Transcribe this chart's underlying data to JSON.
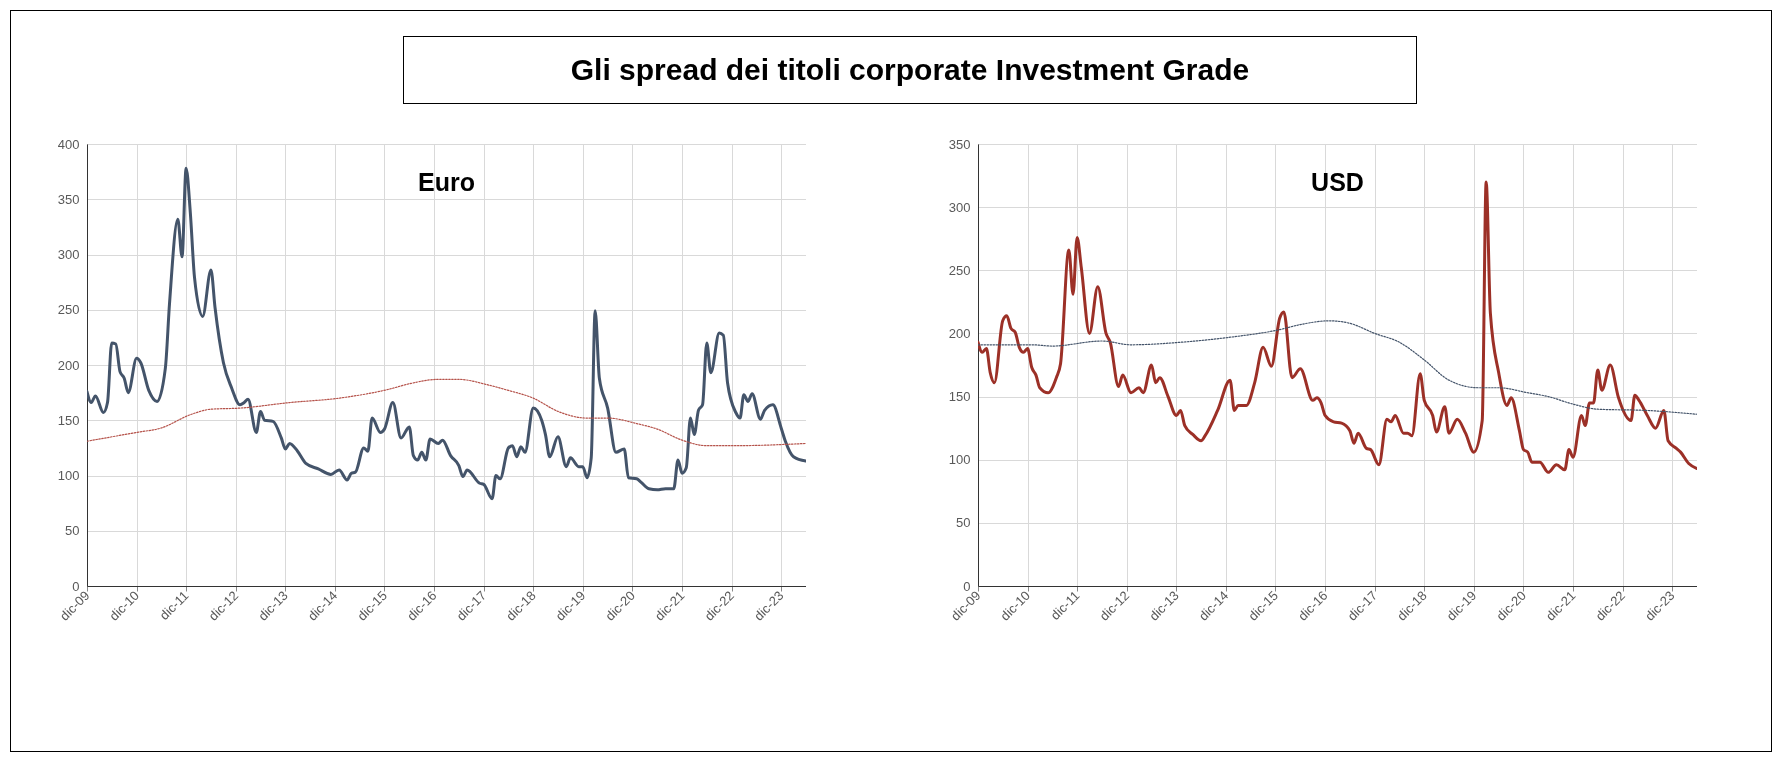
{
  "chart_data": [
    {
      "type": "line",
      "title": "Gli spread dei titoli corporate Investment Grade",
      "subtitle": "Euro",
      "grid": true,
      "xlim": [
        "2009-12",
        "2024-06"
      ],
      "xticks": [
        {
          "value": "2009-12",
          "label": "dic-09"
        },
        {
          "value": "2010-12",
          "label": "dic-10"
        },
        {
          "value": "2011-12",
          "label": "dic-11"
        },
        {
          "value": "2012-12",
          "label": "dic-12"
        },
        {
          "value": "2013-12",
          "label": "dic-13"
        },
        {
          "value": "2014-12",
          "label": "dic-14"
        },
        {
          "value": "2015-12",
          "label": "dic-15"
        },
        {
          "value": "2016-12",
          "label": "dic-16"
        },
        {
          "value": "2017-12",
          "label": "dic-17"
        },
        {
          "value": "2018-12",
          "label": "dic-18"
        },
        {
          "value": "2019-12",
          "label": "dic-19"
        },
        {
          "value": "2020-12",
          "label": "dic-20"
        },
        {
          "value": "2021-12",
          "label": "dic-21"
        },
        {
          "value": "2022-12",
          "label": "dic-22"
        },
        {
          "value": "2023-12",
          "label": "dic-23"
        }
      ],
      "ylim": [
        0,
        400
      ],
      "yticks": [
        0,
        50,
        100,
        150,
        200,
        250,
        300,
        350,
        400
      ],
      "series": [
        {
          "color": "#44546a",
          "line_style": "solid",
          "x": [
            "2009-12",
            "2010-01",
            "2010-02",
            "2010-04",
            "2010-05",
            "2010-06",
            "2010-07",
            "2010-08",
            "2010-09",
            "2010-10",
            "2010-12",
            "2011-01",
            "2011-03",
            "2011-05",
            "2011-07",
            "2011-08",
            "2011-10",
            "2011-11",
            "2011-12",
            "2012-01",
            "2012-02",
            "2012-04",
            "2012-06",
            "2012-07",
            "2012-09",
            "2012-11",
            "2013-01",
            "2013-02",
            "2013-03",
            "2013-05",
            "2013-06",
            "2013-07",
            "2013-09",
            "2013-11",
            "2013-12",
            "2014-01",
            "2014-03",
            "2014-05",
            "2014-08",
            "2014-11",
            "2015-01",
            "2015-03",
            "2015-04",
            "2015-05",
            "2015-07",
            "2015-08",
            "2015-09",
            "2015-11",
            "2015-12",
            "2016-02",
            "2016-04",
            "2016-06",
            "2016-07",
            "2016-08",
            "2016-09",
            "2016-10",
            "2016-11",
            "2017-01",
            "2017-02",
            "2017-04",
            "2017-06",
            "2017-07",
            "2017-08",
            "2017-11",
            "2017-12",
            "2018-02",
            "2018-03",
            "2018-04",
            "2018-06",
            "2018-07",
            "2018-08",
            "2018-09",
            "2018-10",
            "2018-12",
            "2019-02",
            "2019-03",
            "2019-04",
            "2019-06",
            "2019-08",
            "2019-09",
            "2019-11",
            "2019-12",
            "2020-01",
            "2020-02",
            "2020-03",
            "2020-04",
            "2020-06",
            "2020-08",
            "2020-10",
            "2020-11",
            "2021-01",
            "2021-02",
            "2021-04",
            "2021-06",
            "2021-08",
            "2021-10",
            "2021-11",
            "2021-12",
            "2022-01",
            "2022-02",
            "2022-03",
            "2022-04",
            "2022-05",
            "2022-06",
            "2022-07",
            "2022-09",
            "2022-10",
            "2022-11",
            "2023-01",
            "2023-02",
            "2023-03",
            "2023-04",
            "2023-05",
            "2023-07",
            "2023-08",
            "2023-10",
            "2023-12",
            "2024-01",
            "2024-03",
            "2024-06"
          ],
          "values": [
            176,
            166,
            172,
            157,
            166,
            220,
            219,
            194,
            188,
            175,
            206,
            202,
            177,
            167,
            197,
            256,
            332,
            298,
            378,
            338,
            279,
            244,
            286,
            252,
            202,
            179,
            164,
            166,
            169,
            139,
            158,
            150,
            149,
            134,
            124,
            129,
            122,
            111,
            106,
            101,
            105,
            96,
            102,
            103,
            125,
            122,
            152,
            139,
            142,
            166,
            134,
            144,
            118,
            114,
            121,
            114,
            133,
            129,
            132,
            118,
            109,
            99,
            105,
            93,
            92,
            79,
            100,
            97,
            125,
            127,
            117,
            126,
            121,
            161,
            150,
            137,
            117,
            135,
            108,
            116,
            108,
            108,
            98,
            116,
            249,
            188,
            161,
            121,
            124,
            98,
            97,
            94,
            88,
            87,
            88,
            88,
            114,
            102,
            107,
            152,
            137,
            159,
            164,
            220,
            193,
            229,
            227,
            184,
            157,
            152,
            173,
            167,
            174,
            151,
            159,
            164,
            143,
            131,
            117,
            113
          ]
        },
        {
          "color": "#b5524a",
          "line_style": "dotted",
          "x": [
            "2009-12",
            "2010-12",
            "2011-06",
            "2012-01",
            "2012-06",
            "2013-01",
            "2014-01",
            "2015-01",
            "2016-01",
            "2016-06",
            "2017-01",
            "2017-06",
            "2018-01",
            "2018-06",
            "2018-12",
            "2019-06",
            "2020-01",
            "2020-06",
            "2021-01",
            "2021-06",
            "2021-12",
            "2022-06",
            "2023-01",
            "2024-06"
          ],
          "values": [
            131,
            139,
            143,
            155,
            160,
            161,
            166,
            170,
            178,
            183,
            187,
            187,
            182,
            177,
            170,
            158,
            152,
            152,
            147,
            142,
            132,
            127,
            127,
            129
          ]
        }
      ]
    },
    {
      "type": "line",
      "subtitle": "USD",
      "grid": true,
      "xlim": [
        "2009-12",
        "2024-06"
      ],
      "xticks": [
        {
          "value": "2009-12",
          "label": "dic-09"
        },
        {
          "value": "2010-12",
          "label": "dic-10"
        },
        {
          "value": "2011-12",
          "label": "dic-11"
        },
        {
          "value": "2012-12",
          "label": "dic-12"
        },
        {
          "value": "2013-12",
          "label": "dic-13"
        },
        {
          "value": "2014-12",
          "label": "dic-14"
        },
        {
          "value": "2015-12",
          "label": "dic-15"
        },
        {
          "value": "2016-12",
          "label": "dic-16"
        },
        {
          "value": "2017-12",
          "label": "dic-17"
        },
        {
          "value": "2018-12",
          "label": "dic-18"
        },
        {
          "value": "2019-12",
          "label": "dic-19"
        },
        {
          "value": "2020-12",
          "label": "dic-20"
        },
        {
          "value": "2021-12",
          "label": "dic-21"
        },
        {
          "value": "2022-12",
          "label": "dic-22"
        },
        {
          "value": "2023-12",
          "label": "dic-23"
        }
      ],
      "ylim": [
        0,
        350
      ],
      "yticks": [
        0,
        50,
        100,
        150,
        200,
        250,
        300,
        350
      ],
      "series": [
        {
          "color": "#9c3027",
          "line_style": "solid",
          "x": [
            "2009-12",
            "2010-01",
            "2010-02",
            "2010-03",
            "2010-04",
            "2010-06",
            "2010-07",
            "2010-08",
            "2010-09",
            "2010-10",
            "2010-11",
            "2010-12",
            "2011-01",
            "2011-02",
            "2011-03",
            "2011-05",
            "2011-07",
            "2011-08",
            "2011-10",
            "2011-11",
            "2011-12",
            "2012-01",
            "2012-03",
            "2012-05",
            "2012-07",
            "2012-08",
            "2012-10",
            "2012-11",
            "2013-01",
            "2013-03",
            "2013-04",
            "2013-06",
            "2013-07",
            "2013-08",
            "2013-10",
            "2013-12",
            "2014-01",
            "2014-02",
            "2014-04",
            "2014-06",
            "2014-07",
            "2014-10",
            "2015-01",
            "2015-02",
            "2015-03",
            "2015-05",
            "2015-07",
            "2015-09",
            "2015-11",
            "2016-01",
            "2016-02",
            "2016-04",
            "2016-06",
            "2016-09",
            "2016-10",
            "2016-11",
            "2016-12",
            "2017-02",
            "2017-04",
            "2017-06",
            "2017-07",
            "2017-08",
            "2017-10",
            "2017-11",
            "2018-01",
            "2018-03",
            "2018-04",
            "2018-05",
            "2018-07",
            "2018-08",
            "2018-09",
            "2018-11",
            "2018-12",
            "2019-02",
            "2019-03",
            "2019-05",
            "2019-06",
            "2019-08",
            "2019-10",
            "2019-12",
            "2020-02",
            "2020-03",
            "2020-04",
            "2020-06",
            "2020-08",
            "2020-09",
            "2020-11",
            "2020-12",
            "2021-01",
            "2021-02",
            "2021-04",
            "2021-06",
            "2021-08",
            "2021-10",
            "2021-11",
            "2021-12",
            "2022-02",
            "2022-03",
            "2022-04",
            "2022-05",
            "2022-06",
            "2022-07",
            "2022-09",
            "2022-11",
            "2023-02",
            "2023-03",
            "2023-04",
            "2023-06",
            "2023-08",
            "2023-10",
            "2023-11",
            "2024-01",
            "2024-02",
            "2024-04",
            "2024-06"
          ],
          "values": [
            193,
            185,
            188,
            169,
            161,
            210,
            214,
            204,
            201,
            189,
            185,
            188,
            173,
            167,
            157,
            153,
            165,
            176,
            266,
            231,
            276,
            252,
            200,
            237,
            200,
            193,
            158,
            167,
            153,
            157,
            153,
            175,
            161,
            165,
            150,
            135,
            139,
            127,
            120,
            115,
            119,
            139,
            163,
            139,
            143,
            143,
            161,
            189,
            174,
            212,
            217,
            165,
            172,
            147,
            149,
            145,
            135,
            130,
            129,
            123,
            113,
            121,
            109,
            108,
            96,
            132,
            130,
            135,
            121,
            121,
            119,
            168,
            147,
            135,
            122,
            142,
            121,
            132,
            121,
            106,
            131,
            320,
            216,
            169,
            143,
            149,
            123,
            108,
            106,
            98,
            98,
            90,
            96,
            92,
            108,
            102,
            135,
            127,
            145,
            145,
            171,
            155,
            175,
            149,
            131,
            151,
            147,
            135,
            125,
            139,
            115,
            109,
            106,
            97,
            93
          ]
        },
        {
          "color": "#44546a",
          "line_style": "dotted",
          "x": [
            "2009-12",
            "2011-01",
            "2011-06",
            "2012-06",
            "2013-01",
            "2014-01",
            "2015-01",
            "2016-01",
            "2016-06",
            "2017-01",
            "2017-06",
            "2017-12",
            "2018-06",
            "2018-12",
            "2019-06",
            "2020-01",
            "2020-06",
            "2021-01",
            "2021-06",
            "2021-12",
            "2022-06",
            "2023-06",
            "2024-06"
          ],
          "values": [
            191,
            191,
            190,
            194,
            191,
            193,
            197,
            203,
            207,
            210,
            208,
            200,
            193,
            179,
            163,
            157,
            157,
            153,
            150,
            144,
            140,
            139,
            136
          ]
        }
      ]
    }
  ]
}
